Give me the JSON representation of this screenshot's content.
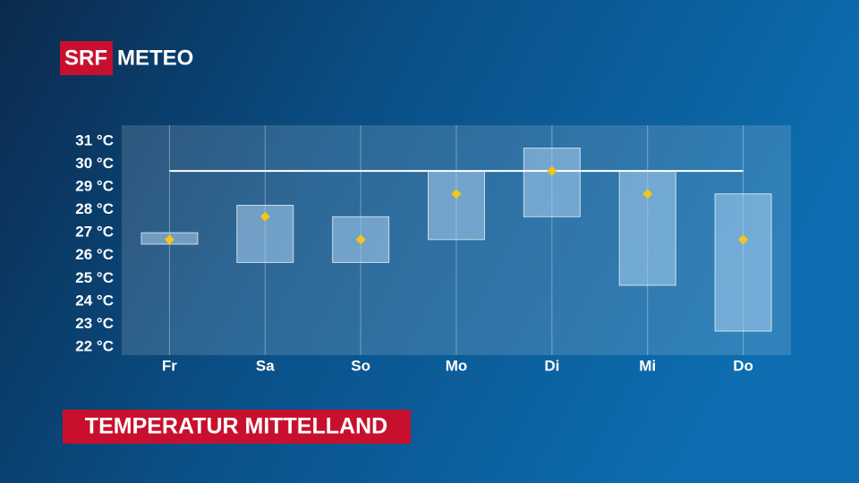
{
  "logo": {
    "srf": "SRF",
    "meteo": "METEO"
  },
  "chart_data": {
    "type": "range-bar",
    "title": "TEMPERATUR MITTELLAND",
    "categories": [
      "Fr",
      "Sa",
      "So",
      "Mo",
      "Di",
      "Mi",
      "Do"
    ],
    "low": [
      26.5,
      25.7,
      25.7,
      26.7,
      27.7,
      24.7,
      22.7
    ],
    "high": [
      27.0,
      28.2,
      27.7,
      29.7,
      30.7,
      29.7,
      28.7
    ],
    "values": [
      26.7,
      27.7,
      26.7,
      28.7,
      29.7,
      28.7,
      26.7
    ],
    "reference_line": 29.7,
    "box_color": "#a9d0ee",
    "marker_color": "#f5c518",
    "ylim": [
      21.65,
      31.7
    ],
    "yticks": [
      {
        "value": 22,
        "label": "22 °C"
      },
      {
        "value": 23,
        "label": "23 °C"
      },
      {
        "value": 24,
        "label": "24 °C"
      },
      {
        "value": 25,
        "label": "25 °C"
      },
      {
        "value": 26,
        "label": "26 °C"
      },
      {
        "value": 27,
        "label": "27 °C"
      },
      {
        "value": 28,
        "label": "28 °C"
      },
      {
        "value": 29,
        "label": "29 °C"
      },
      {
        "value": 30,
        "label": "30 °C"
      },
      {
        "value": 31,
        "label": "31 °C"
      }
    ]
  }
}
